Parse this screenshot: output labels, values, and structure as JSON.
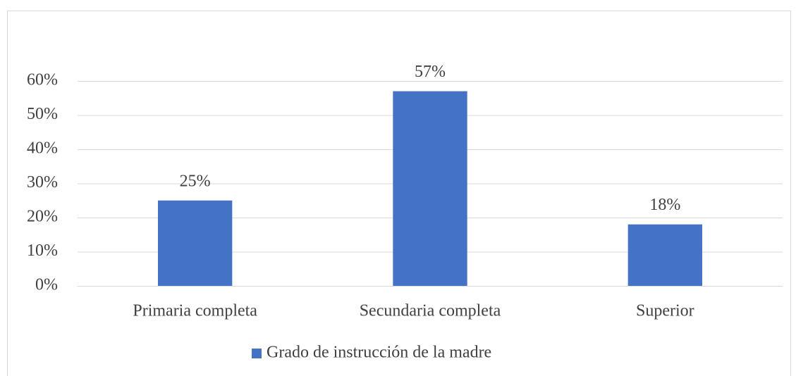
{
  "chart_data": {
    "type": "bar",
    "categories": [
      "Primaria completa",
      "Secundaria completa",
      "Superior"
    ],
    "series": [
      {
        "name": "Grado de instrucción de la madre",
        "color": "#4472c4",
        "values": [
          25,
          57,
          18
        ],
        "value_labels": [
          "25%",
          "57%",
          "18%"
        ]
      }
    ],
    "ylim": [
      0,
      60
    ],
    "yticks": [
      {
        "value": 0,
        "label": "0%"
      },
      {
        "value": 10,
        "label": "10%"
      },
      {
        "value": 20,
        "label": "20%"
      },
      {
        "value": 30,
        "label": "30%"
      },
      {
        "value": 40,
        "label": "40%"
      },
      {
        "value": 50,
        "label": "50%"
      },
      {
        "value": 60,
        "label": "60%"
      }
    ],
    "grid": true,
    "legend": "bottom"
  }
}
